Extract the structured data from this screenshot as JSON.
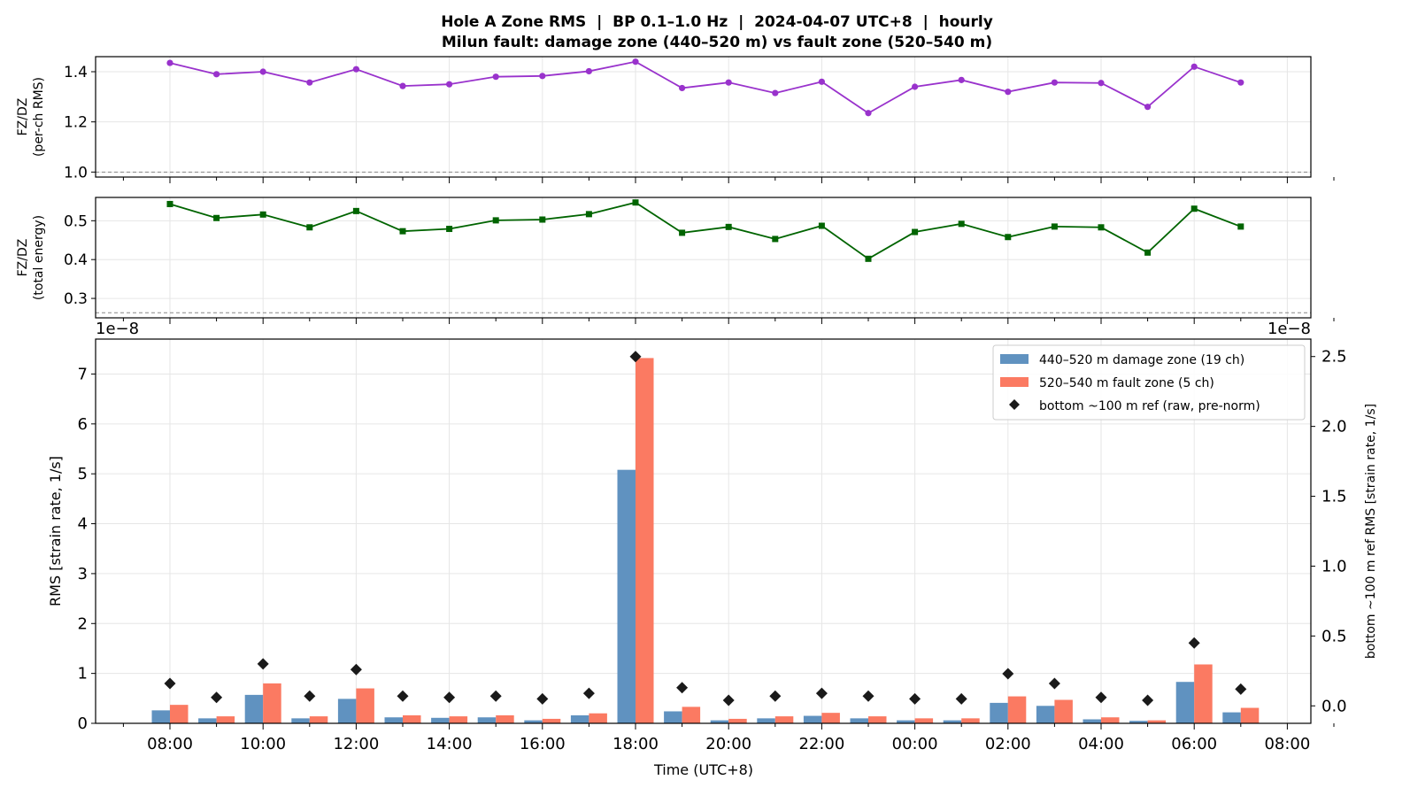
{
  "figure": {
    "title_line1": "Hole A Zone RMS  |  BP 0.1–1.0 Hz  |  2024-04-07 UTC+8  |  hourly",
    "title_line2": "Milun fault: damage zone (440–520 m) vs fault zone (520–540 m)"
  },
  "colors": {
    "damage": "#6092c0",
    "fault": "#fb7a62",
    "ref": "#1a1a1a",
    "ratio_rms": "#9932cc",
    "ratio_energy": "#006400",
    "grid": "#e6e6e6",
    "axis": "#000000"
  },
  "chart_data": [
    {
      "id": "ratio_rms",
      "type": "line",
      "ylabel_line1": "FZ/DZ",
      "ylabel_line2": "(per-ch RMS)",
      "ylim": [
        0.98,
        1.46
      ],
      "yticks": [
        1.0,
        1.2,
        1.4
      ],
      "ytick_labels": [
        "1.0",
        "1.2",
        "1.4"
      ],
      "reference_line": 1.0,
      "marker": "circle",
      "grid": true,
      "values": [
        1.435,
        1.39,
        1.4,
        1.357,
        1.41,
        1.343,
        1.35,
        1.38,
        1.383,
        1.402,
        1.44,
        1.335,
        1.357,
        1.315,
        1.36,
        1.235,
        1.34,
        1.367,
        1.32,
        1.357,
        1.355,
        1.26,
        1.42,
        1.357
      ]
    },
    {
      "id": "ratio_energy",
      "type": "line",
      "ylabel_line1": "FZ/DZ",
      "ylabel_line2": "(total energy)",
      "ylim": [
        0.25,
        0.56
      ],
      "yticks": [
        0.3,
        0.4,
        0.5
      ],
      "ytick_labels": [
        "0.3",
        "0.4",
        "0.5"
      ],
      "reference_line": 0.263,
      "marker": "square",
      "grid": true,
      "values": [
        0.543,
        0.507,
        0.516,
        0.483,
        0.525,
        0.473,
        0.479,
        0.501,
        0.503,
        0.517,
        0.547,
        0.469,
        0.484,
        0.453,
        0.487,
        0.402,
        0.471,
        0.492,
        0.458,
        0.485,
        0.483,
        0.418,
        0.531,
        0.485
      ]
    },
    {
      "id": "zone_rms",
      "type": "bar",
      "xlabel": "Time (UTC+8)",
      "ylabel": "RMS  [strain rate, 1/s]",
      "ylabel_right": "bottom ~100 m ref RMS  [strain rate, 1/s]",
      "offset_left": "1e−8",
      "offset_right": "1e−8",
      "ylim": [
        0,
        7.7
      ],
      "yticks": [
        0,
        1,
        2,
        3,
        4,
        5,
        6,
        7
      ],
      "ytick_labels": [
        "0",
        "1",
        "2",
        "3",
        "4",
        "5",
        "6",
        "7"
      ],
      "ylim_right": [
        -0.125,
        2.625
      ],
      "yticks_right": [
        0.0,
        0.5,
        1.0,
        1.5,
        2.0,
        2.5
      ],
      "ytick_labels_right": [
        "0.0",
        "0.5",
        "1.0",
        "1.5",
        "2.0",
        "2.5"
      ],
      "grid": true,
      "legend_position": "top-right",
      "xtick_labels": [
        "08:00",
        "10:00",
        "12:00",
        "14:00",
        "16:00",
        "18:00",
        "20:00",
        "22:00",
        "00:00",
        "02:00",
        "04:00",
        "06:00",
        "08:00"
      ],
      "series": [
        {
          "name": "440–520 m  damage zone (19 ch)",
          "values": [
            0.26,
            0.1,
            0.57,
            0.1,
            0.49,
            0.12,
            0.11,
            0.12,
            0.06,
            0.16,
            5.08,
            0.24,
            0.06,
            0.1,
            0.15,
            0.1,
            0.06,
            0.06,
            0.41,
            0.35,
            0.08,
            0.05,
            0.83,
            0.22
          ]
        },
        {
          "name": "520–540 m  fault zone (5 ch)",
          "values": [
            0.37,
            0.14,
            0.8,
            0.14,
            0.7,
            0.16,
            0.14,
            0.16,
            0.09,
            0.2,
            7.32,
            0.33,
            0.09,
            0.14,
            0.21,
            0.14,
            0.1,
            0.1,
            0.54,
            0.47,
            0.12,
            0.06,
            1.18,
            0.31
          ]
        },
        {
          "name": "bottom ~100 m ref (raw, pre-norm)",
          "axis": "right",
          "marker": "diamond",
          "values": [
            0.16,
            0.06,
            0.3,
            0.07,
            0.26,
            0.07,
            0.06,
            0.07,
            0.05,
            0.09,
            2.5,
            0.13,
            0.04,
            0.07,
            0.09,
            0.07,
            0.05,
            0.05,
            0.23,
            0.16,
            0.06,
            0.04,
            0.45,
            0.12
          ]
        }
      ]
    }
  ]
}
